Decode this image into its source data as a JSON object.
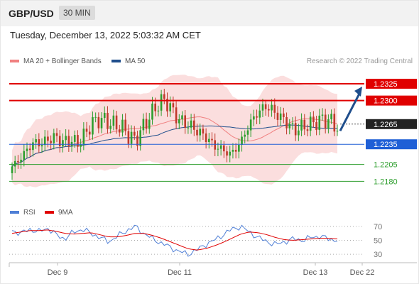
{
  "header": {
    "pair": "GBP/USD",
    "timeframe": "30 MIN",
    "timestamp": "Tuesday, December 13, 2022 5:03:32 AM CET",
    "credit": "Research © 2022 Trading Central"
  },
  "legend": {
    "main": [
      {
        "label": "MA 20 + Bollinger Bands",
        "color": "#f08080"
      },
      {
        "label": "MA 50",
        "color": "#1f4e8c"
      }
    ],
    "rsi": [
      {
        "label": "RSI",
        "color": "#4f7fd6"
      },
      {
        "label": "9MA",
        "color": "#e00000"
      }
    ]
  },
  "colors": {
    "resistance": "#e00000",
    "pivot": "#1f5fd6",
    "support": "#2e9e2e",
    "candle_up": "#2e9e2e",
    "candle_down": "#c0392b",
    "current_tag": "#222222",
    "arrow": "#1f4e8c"
  },
  "chart_data": {
    "type": "candlestick",
    "ylim": [
      1.2155,
      1.2345
    ],
    "x_ticks": [
      "Dec 9",
      "Dec 11",
      "Dec 13",
      "Dec 22"
    ],
    "levels": [
      {
        "value": 1.2325,
        "label": "1.2325",
        "kind": "resistance"
      },
      {
        "value": 1.23,
        "label": "1.2300",
        "kind": "resistance"
      },
      {
        "value": 1.2265,
        "label": "1.2265",
        "kind": "current"
      },
      {
        "value": 1.2235,
        "label": "1.2235",
        "kind": "pivot"
      },
      {
        "value": 1.2205,
        "label": "1.2205",
        "kind": "support"
      },
      {
        "value": 1.218,
        "label": "1.2180",
        "kind": "support"
      }
    ],
    "close_path": [
      1.2202,
      1.2212,
      1.2226,
      1.2238,
      1.2236,
      1.2242,
      1.2246,
      1.2238,
      1.2242,
      1.2236,
      1.2248,
      1.2266,
      1.2272,
      1.227,
      1.2264,
      1.2262,
      1.225,
      1.224,
      1.2258,
      1.2276,
      1.2292,
      1.2302,
      1.2288,
      1.2272,
      1.2266,
      1.226,
      1.2252,
      1.2244,
      1.2232,
      1.2228,
      1.222,
      1.2228,
      1.2246,
      1.2268,
      1.2282,
      1.2292,
      1.2286,
      1.2276,
      1.2268,
      1.2256,
      1.226,
      1.2264,
      1.2268,
      1.2272,
      1.227,
      1.226
    ],
    "forecast_target": 1.2325,
    "rsi": {
      "ylim": [
        25,
        75
      ],
      "levels": [
        70,
        50,
        30
      ],
      "rsi_path": [
        64,
        60,
        66,
        62,
        68,
        58,
        52,
        62,
        66,
        60,
        54,
        48,
        56,
        64,
        70,
        60,
        52,
        46,
        40,
        34,
        30,
        36,
        44,
        50,
        58,
        66,
        70,
        62,
        54,
        48,
        44,
        48,
        52,
        50,
        54,
        56,
        52,
        50
      ],
      "ma9_path": [
        60,
        62,
        64,
        64,
        65,
        63,
        60,
        59,
        60,
        61,
        58,
        55,
        55,
        57,
        60,
        60,
        57,
        53,
        48,
        43,
        38,
        36,
        38,
        42,
        47,
        53,
        59,
        62,
        61,
        58,
        54,
        51,
        50,
        51,
        52,
        53,
        53,
        52
      ]
    }
  }
}
